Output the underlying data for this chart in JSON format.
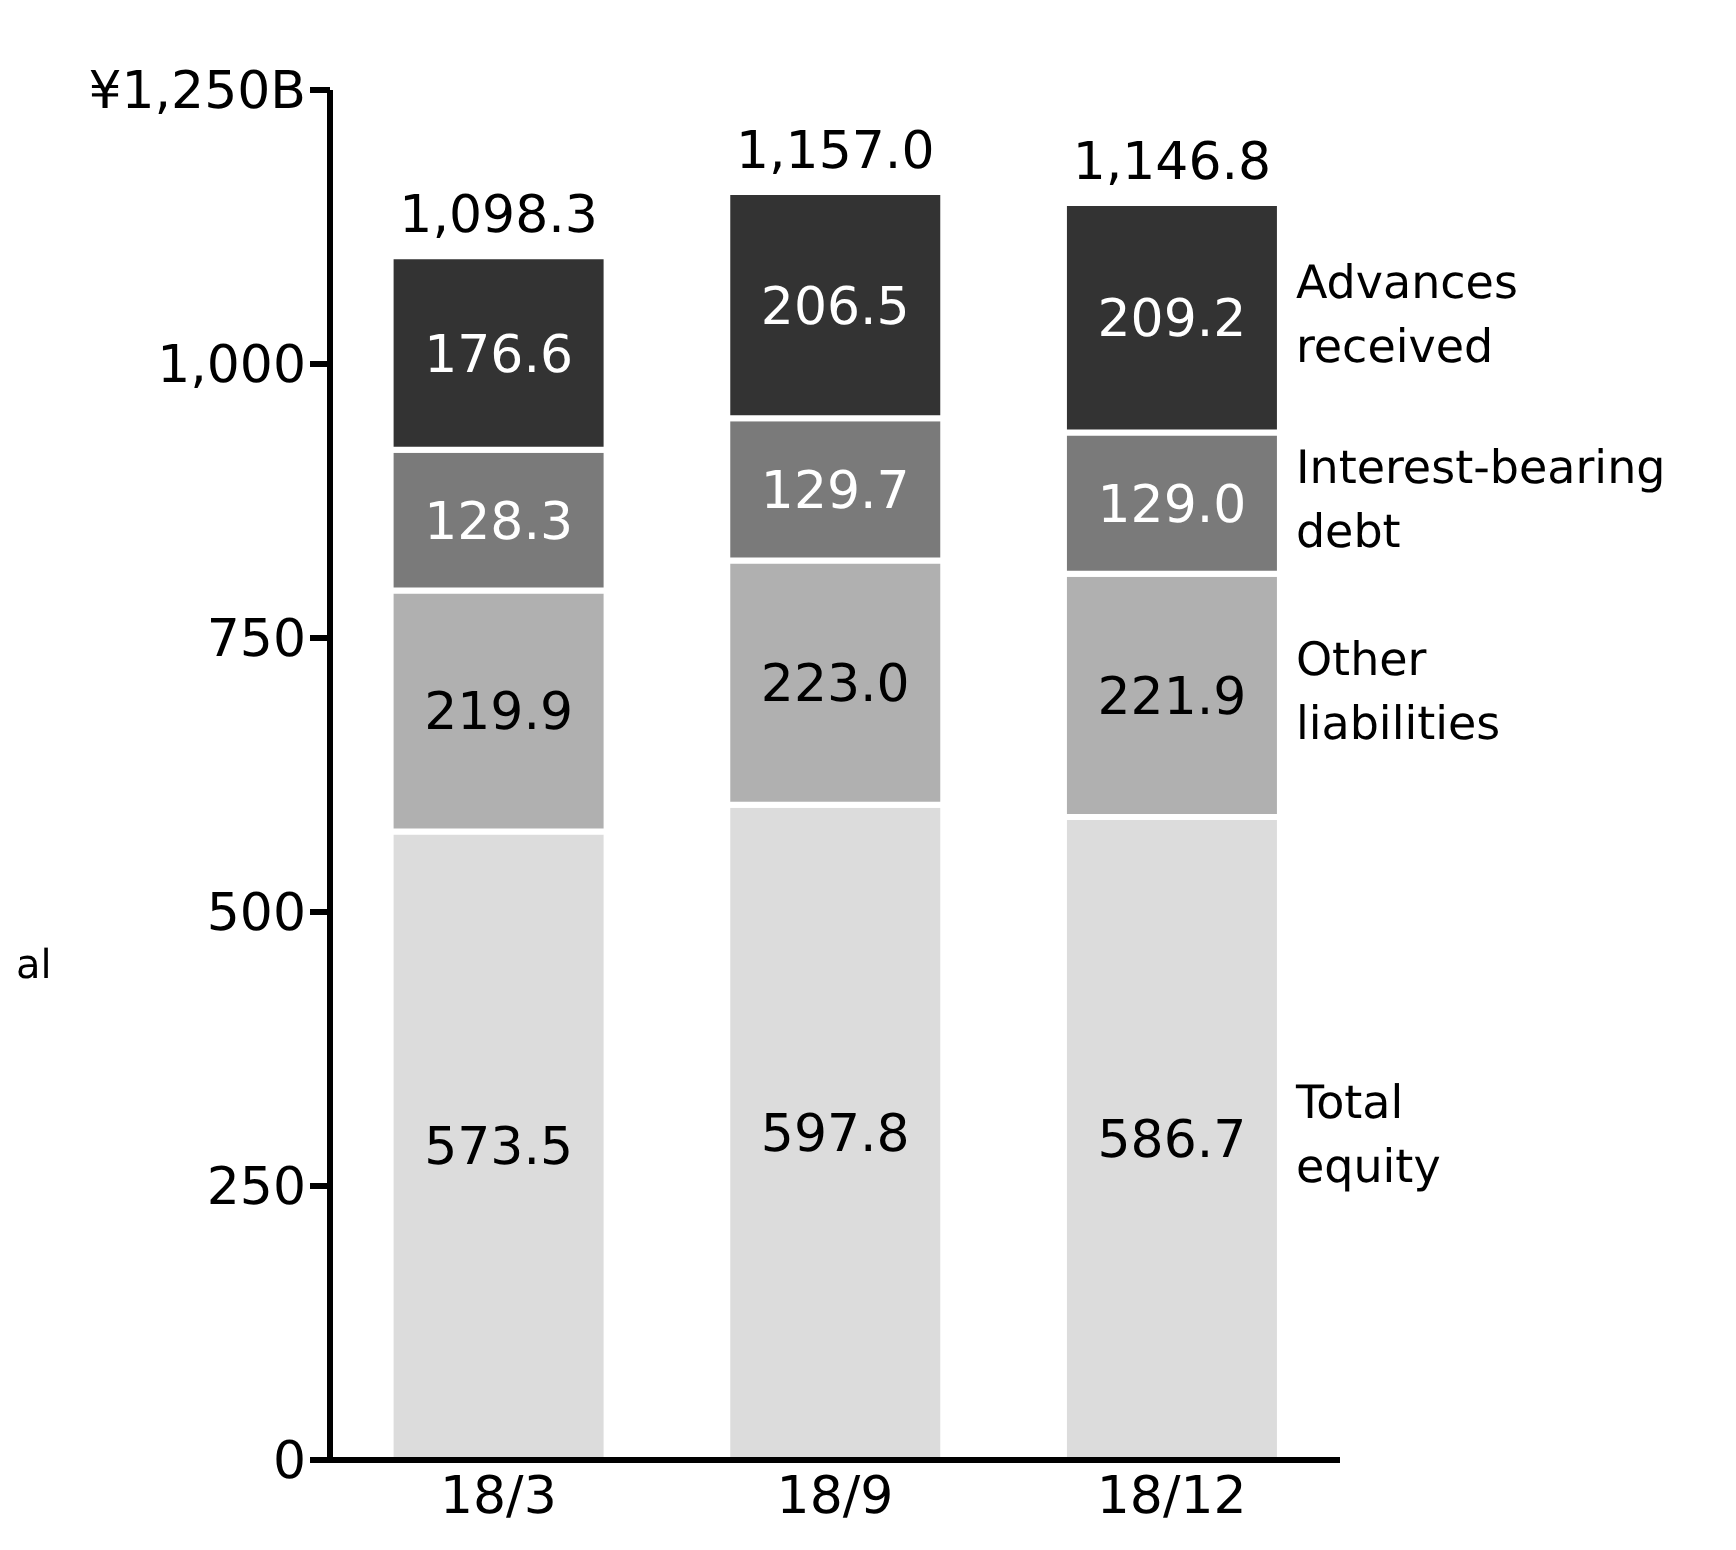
{
  "chart_data": {
    "type": "bar",
    "stacked": true,
    "categories": [
      "18/3",
      "18/9",
      "18/12"
    ],
    "series": [
      {
        "name": "Total equity",
        "color": "#dcdcdc",
        "values": [
          573.5,
          597.8,
          586.7
        ],
        "value_labels": [
          "573.5",
          "597.8",
          "586.7"
        ]
      },
      {
        "name": "Other liabilities",
        "color": "#b0b0b0",
        "values": [
          219.9,
          223.0,
          221.9
        ],
        "value_labels": [
          "219.9",
          "223.0",
          "221.9"
        ]
      },
      {
        "name": "Interest-bearing debt",
        "color": "#7a7a7a",
        "values": [
          128.3,
          129.7,
          129.0
        ],
        "value_labels": [
          "128.3",
          "129.7",
          "129.0"
        ]
      },
      {
        "name": "Advances received",
        "color": "#333333",
        "values": [
          176.6,
          206.5,
          209.2
        ],
        "value_labels": [
          "176.6",
          "206.5",
          "209.2"
        ]
      }
    ],
    "totals": [
      "1,098.3",
      "1,157.0",
      "1,146.8"
    ],
    "ylim": [
      0,
      1250
    ],
    "yticks": [
      0,
      250,
      500,
      750,
      {
        "value": 1000,
        "label": "1,000"
      },
      {
        "value": 1250,
        "label": "¥1,250B"
      }
    ],
    "legend": "right",
    "annotations": [
      "al"
    ]
  }
}
